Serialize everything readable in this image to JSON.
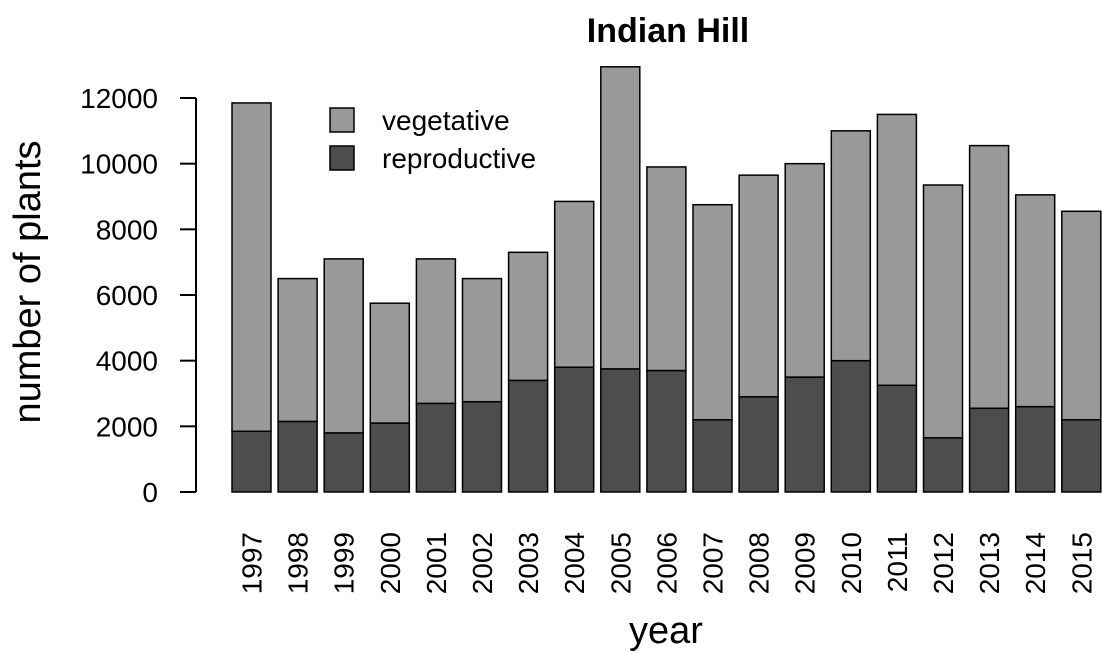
{
  "chart_data": {
    "type": "bar",
    "stacked": true,
    "title": "Indian Hill",
    "xlabel": "year",
    "ylabel": "number of plants",
    "ylim": [
      0,
      12000
    ],
    "yticks": [
      "0",
      "2000",
      "4000",
      "6000",
      "8000",
      "10000",
      "12000"
    ],
    "categories": [
      "1997",
      "1998",
      "1999",
      "2000",
      "2001",
      "2002",
      "2003",
      "2004",
      "2005",
      "2006",
      "2007",
      "2008",
      "2009",
      "2010",
      "2011",
      "2012",
      "2013",
      "2014",
      "2015"
    ],
    "series": [
      {
        "name": "reproductive",
        "color": "#4d4d4d",
        "values": [
          1850,
          2150,
          1800,
          2100,
          2700,
          2750,
          3400,
          3800,
          3750,
          3700,
          2200,
          2900,
          3500,
          4000,
          3250,
          1650,
          2550,
          2600,
          2200
        ]
      },
      {
        "name": "vegetative",
        "color": "#999999",
        "values": [
          10000,
          4350,
          5300,
          3650,
          4400,
          3750,
          3900,
          5050,
          9200,
          6200,
          6550,
          6750,
          6500,
          7000,
          8250,
          7700,
          8000,
          6450,
          6350
        ]
      }
    ],
    "legend": {
      "position": "top-left",
      "entries": [
        "vegetative",
        "reproductive"
      ]
    },
    "grid": false
  }
}
